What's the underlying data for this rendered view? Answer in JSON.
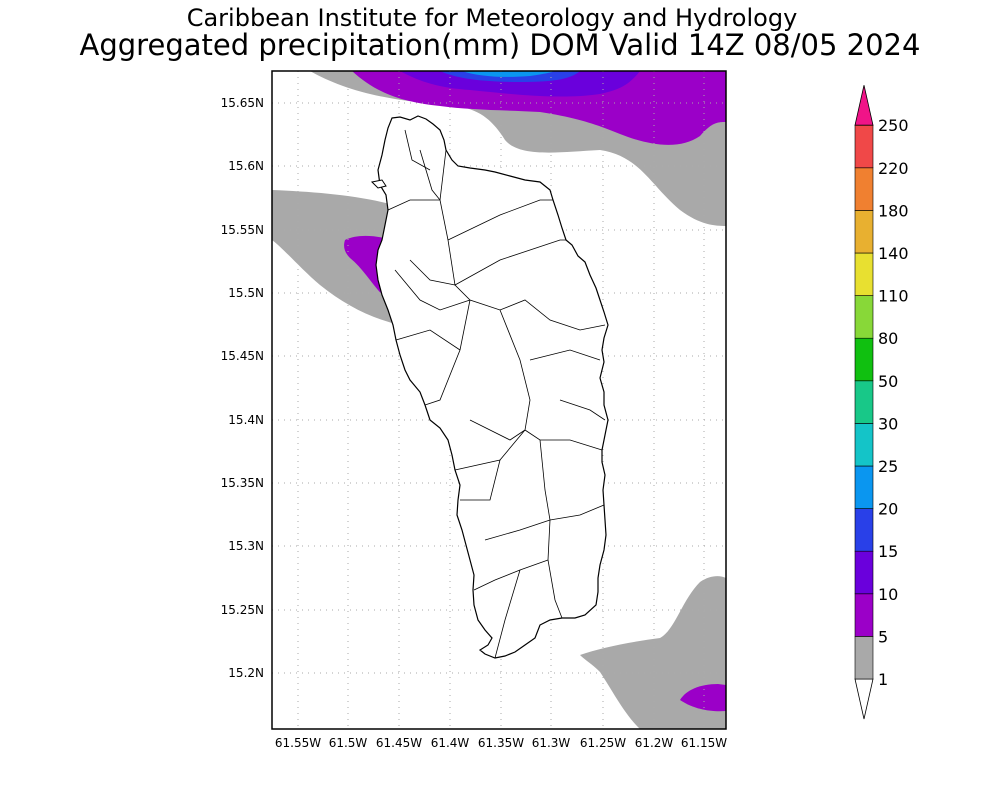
{
  "header": {
    "title": "Caribbean Institute for Meteorology and Hydrology",
    "subtitle": "Aggregated precipitation(mm) DOM Valid 14Z 08/05 2024"
  },
  "map": {
    "lat_labels": [
      "15.65N",
      "15.6N",
      "15.55N",
      "15.5N",
      "15.45N",
      "15.4N",
      "15.35N",
      "15.3N",
      "15.25N",
      "15.2N"
    ],
    "lon_labels": [
      "61.55W",
      "61.5W",
      "61.45W",
      "61.4W",
      "61.35W",
      "61.3W",
      "61.25W",
      "61.2W",
      "61.15W"
    ],
    "grid": true,
    "colors": {
      "land_outline": "#000000",
      "grid_dots": "#aaaaaa"
    }
  },
  "colorbar": {
    "levels": [
      "1",
      "5",
      "10",
      "15",
      "20",
      "25",
      "30",
      "50",
      "80",
      "110",
      "140",
      "180",
      "220",
      "250"
    ],
    "colors": [
      "#ffffff",
      "#a9a9a9",
      "#9b00c8",
      "#6a00dc",
      "#2940e8",
      "#0a96f0",
      "#14c4c8",
      "#18c888",
      "#10c010",
      "#88d838",
      "#e8e030",
      "#e8b030",
      "#f08030",
      "#f04848",
      "#f01488"
    ]
  }
}
